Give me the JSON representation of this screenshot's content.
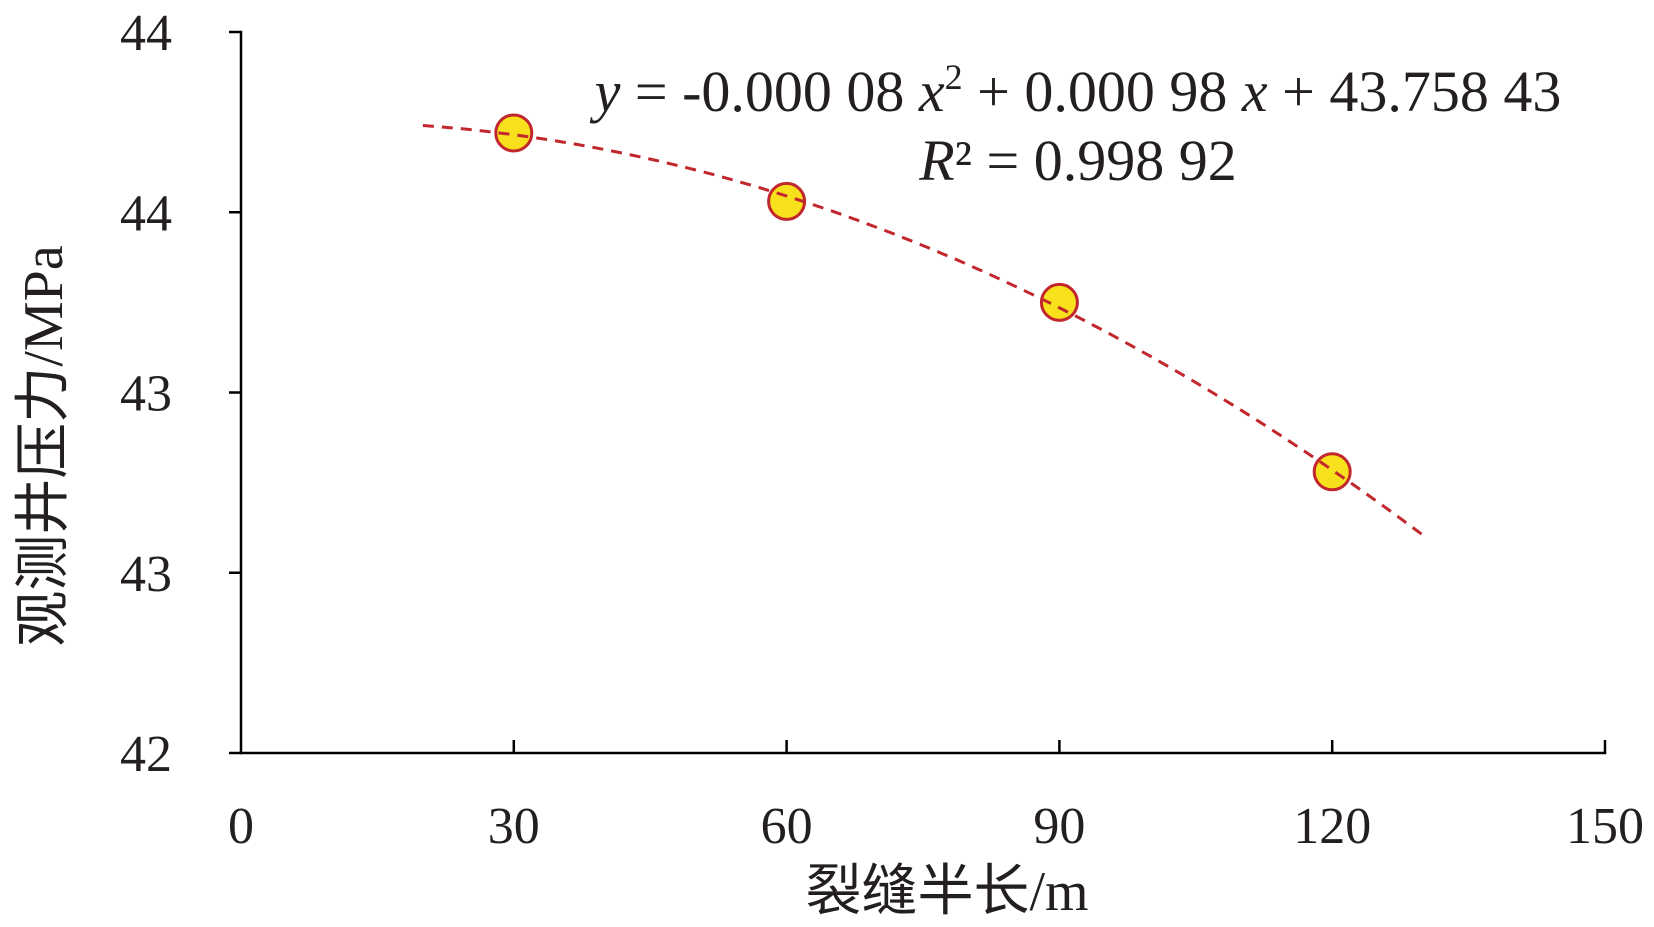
{
  "chart_data": {
    "type": "scatter",
    "title": "",
    "xlabel": "裂缝半长/m",
    "ylabel": "观测井压力/MPa",
    "xlim": [
      0,
      150
    ],
    "ylim": [
      42,
      44
    ],
    "xticks": [
      0,
      30,
      60,
      90,
      120,
      150
    ],
    "xtick_labels": [
      "0",
      "30",
      "60",
      "90",
      "120",
      "150"
    ],
    "yticks": [
      42,
      42.5,
      43,
      43.5,
      44
    ],
    "ytick_labels": [
      "42",
      "43",
      "43",
      "44",
      "44"
    ],
    "grid": false,
    "legend": "none",
    "series": [
      {
        "x": [
          30,
          60,
          90,
          120
        ],
        "y": [
          43.72,
          43.53,
          43.25,
          42.78
        ],
        "marker": "circle"
      }
    ],
    "trendline": {
      "type": "polynomial",
      "order": 2,
      "x_range": [
        20,
        130
      ],
      "style": "dashed"
    },
    "annotations": {
      "equation": {
        "lhs": "y",
        "eq1": " = -0.000 08 ",
        "x_a": "x",
        "power": "2",
        "eq2": " + 0.000 98 ",
        "x_b": "x",
        "eq3": " + 43.758 43"
      },
      "r_squared": {
        "symbol": "R",
        "value": "² = 0.998 92"
      }
    }
  },
  "colors": {
    "axis": "#000000",
    "marker_fill": "#F7E11C",
    "marker_edge": "#C1272D",
    "trendline": "#C1272D"
  }
}
